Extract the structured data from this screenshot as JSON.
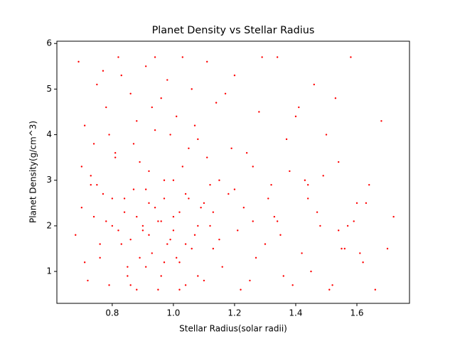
{
  "chart_data": {
    "type": "scatter",
    "title": "Planet Density vs Stellar Radius",
    "x_label": "Stellar Radius(solar radii)",
    "y_label": "Planet Density(g/cm^3)",
    "color": "#ff0000",
    "xlim": [
      0.619,
      1.772
    ],
    "ylim": [
      0.3,
      6.05
    ],
    "xticks": [
      {
        "value": 0.8,
        "label": "0.8"
      },
      {
        "value": 1.0,
        "label": "1.0"
      },
      {
        "value": 1.2,
        "label": "1.2"
      },
      {
        "value": 1.4,
        "label": "1.4"
      },
      {
        "value": 1.6,
        "label": "1.6"
      }
    ],
    "yticks": [
      1,
      2,
      3,
      4,
      5,
      6
    ],
    "series": [
      {
        "x": [
          0.68,
          0.69,
          0.7,
          0.71,
          0.72,
          0.73,
          0.74,
          0.75,
          0.76,
          0.77,
          0.78,
          0.79,
          0.8,
          0.81,
          0.82,
          0.83,
          0.84,
          0.85,
          0.86,
          0.87,
          0.88,
          0.89,
          0.9,
          0.91,
          0.92,
          0.93,
          0.94,
          0.95,
          0.96,
          0.97,
          0.98,
          0.99,
          1.0,
          1.01,
          1.02,
          1.03,
          1.04,
          1.05,
          1.06,
          1.07,
          1.08,
          1.09,
          1.1,
          1.11,
          1.12,
          1.13,
          1.14,
          1.15,
          1.16,
          1.18,
          1.2,
          1.22,
          1.24,
          1.26,
          1.28,
          1.3,
          1.32,
          1.34,
          1.36,
          1.38,
          1.4,
          1.42,
          1.44,
          1.46,
          1.48,
          1.5,
          1.52,
          1.54,
          1.56,
          1.58,
          1.6,
          1.62,
          1.64,
          1.66,
          1.68,
          1.7,
          1.72,
          0.7,
          0.75,
          0.8,
          0.82,
          0.84,
          0.86,
          0.88,
          0.9,
          0.92,
          0.94,
          0.96,
          0.98,
          1.0,
          1.02,
          1.04,
          1.06,
          1.08,
          1.1,
          0.78,
          0.81,
          0.85,
          0.87,
          0.89,
          0.91,
          0.93,
          0.95,
          0.97,
          0.99,
          1.01,
          1.03,
          1.05,
          1.12,
          1.17,
          1.21,
          1.25,
          1.29,
          1.33,
          1.37,
          1.41,
          1.45,
          1.49,
          1.53,
          1.57,
          1.61,
          0.73,
          0.76,
          0.79,
          0.83,
          0.88,
          0.92,
          0.96,
          1.0,
          1.04,
          1.08,
          1.13,
          1.19,
          1.23,
          1.27,
          1.31,
          1.35,
          1.39,
          1.43,
          1.47,
          1.51,
          1.55,
          1.59,
          1.63,
          0.71,
          0.74,
          0.77,
          0.86,
          0.91,
          0.94,
          0.97,
          1.02,
          1.07,
          1.11,
          1.15,
          1.2,
          1.26,
          1.34,
          1.44,
          1.54
        ],
        "values": [
          1.8,
          5.6,
          2.4,
          4.2,
          0.8,
          3.1,
          2.2,
          5.1,
          1.3,
          2.7,
          4.6,
          0.7,
          2.0,
          3.6,
          5.7,
          1.6,
          2.3,
          1.1,
          4.9,
          2.8,
          0.6,
          3.4,
          1.9,
          5.5,
          2.5,
          1.4,
          4.1,
          2.1,
          0.9,
          3.0,
          5.2,
          1.7,
          2.2,
          4.4,
          1.2,
          3.3,
          0.7,
          2.6,
          5.0,
          1.8,
          3.9,
          2.4,
          0.8,
          5.6,
          2.0,
          1.5,
          4.7,
          3.0,
          1.1,
          2.7,
          5.3,
          0.6,
          3.6,
          2.1,
          4.5,
          1.6,
          2.9,
          5.7,
          0.9,
          3.2,
          4.4,
          1.4,
          2.6,
          5.1,
          2.0,
          4.0,
          0.7,
          3.4,
          1.5,
          5.7,
          2.5,
          1.2,
          2.9,
          0.6,
          4.3,
          1.5,
          2.2,
          3.3,
          2.9,
          2.6,
          1.9,
          2.6,
          1.7,
          2.2,
          2.0,
          1.8,
          2.4,
          2.1,
          1.6,
          1.9,
          2.3,
          2.7,
          1.5,
          2.0,
          2.5,
          2.1,
          3.5,
          0.9,
          3.8,
          1.3,
          2.8,
          4.6,
          0.6,
          2.6,
          4.0,
          1.3,
          5.7,
          3.7,
          2.9,
          4.9,
          1.9,
          0.8,
          5.7,
          2.2,
          3.9,
          4.6,
          1.0,
          3.1,
          4.8,
          2.0,
          1.4,
          2.9,
          1.6,
          4.0,
          5.3,
          4.3,
          3.2,
          4.8,
          3.0,
          1.6,
          0.9,
          2.3,
          3.7,
          2.4,
          1.3,
          2.6,
          1.8,
          0.7,
          3.0,
          2.3,
          0.6,
          1.5,
          2.1,
          2.5,
          1.2,
          3.8,
          5.4,
          0.7,
          1.1,
          5.7,
          1.2,
          0.6,
          4.2,
          3.5,
          1.7,
          2.8,
          3.3,
          2.1,
          2.9,
          1.9
        ]
      }
    ]
  }
}
